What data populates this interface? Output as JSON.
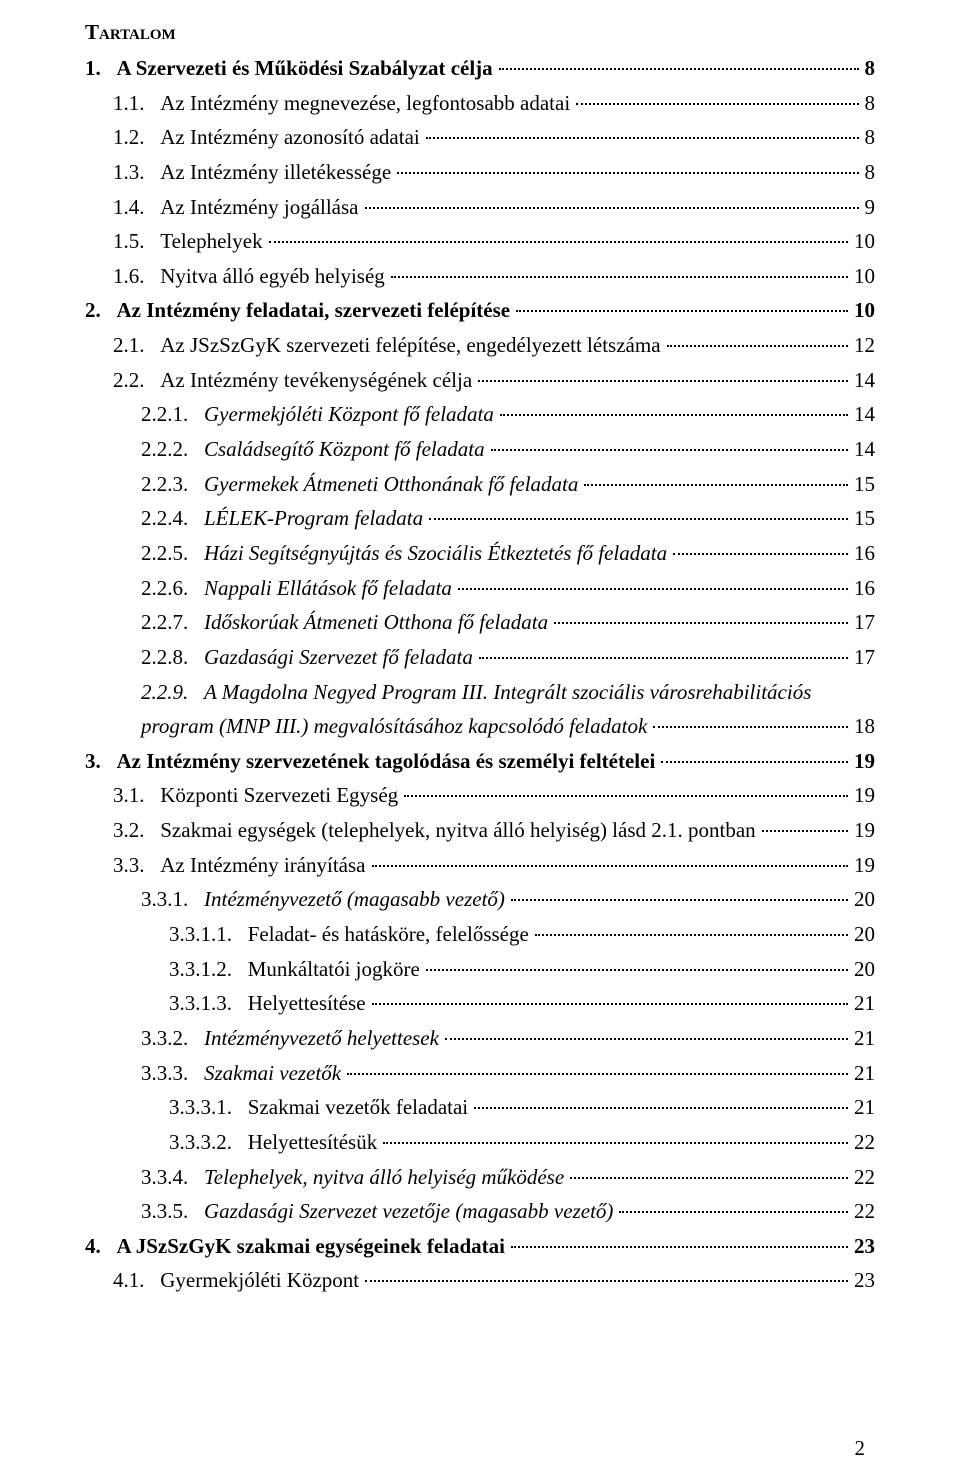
{
  "title": "Tartalom",
  "page_number": "2",
  "toc": [
    {
      "num": "1.",
      "text": "A Szervezeti és Működési Szabályzat célja",
      "page": "8",
      "indent": 0,
      "bold": true,
      "italic": false
    },
    {
      "num": "1.1.",
      "text": "Az Intézmény megnevezése, legfontosabb adatai",
      "page": "8",
      "indent": 1,
      "bold": false,
      "italic": false
    },
    {
      "num": "1.2.",
      "text": "Az Intézmény azonosító adatai",
      "page": "8",
      "indent": 1,
      "bold": false,
      "italic": false
    },
    {
      "num": "1.3.",
      "text": "Az Intézmény illetékessége",
      "page": "8",
      "indent": 1,
      "bold": false,
      "italic": false
    },
    {
      "num": "1.4.",
      "text": "Az Intézmény jogállása",
      "page": "9",
      "indent": 1,
      "bold": false,
      "italic": false
    },
    {
      "num": "1.5.",
      "text": "Telephelyek",
      "page": "10",
      "indent": 1,
      "bold": false,
      "italic": false
    },
    {
      "num": "1.6.",
      "text": "Nyitva álló egyéb helyiség",
      "page": "10",
      "indent": 1,
      "bold": false,
      "italic": false
    },
    {
      "num": "2.",
      "text": "Az Intézmény feladatai, szervezeti felépítése",
      "page": "10",
      "indent": 0,
      "bold": true,
      "italic": false
    },
    {
      "num": "2.1.",
      "text": "Az JSzSzGyK szervezeti felépítése, engedélyezett létszáma",
      "page": "12",
      "indent": 1,
      "bold": false,
      "italic": false
    },
    {
      "num": "2.2.",
      "text": "Az Intézmény tevékenységének célja",
      "page": "14",
      "indent": 1,
      "bold": false,
      "italic": false
    },
    {
      "num": "2.2.1.",
      "text": "Gyermekjóléti Központ fő feladata",
      "page": "14",
      "indent": 2,
      "bold": false,
      "italic": true
    },
    {
      "num": "2.2.2.",
      "text": "Családsegítő Központ fő feladata",
      "page": "14",
      "indent": 2,
      "bold": false,
      "italic": true
    },
    {
      "num": "2.2.3.",
      "text": "Gyermekek Átmeneti Otthonának fő feladata",
      "page": "15",
      "indent": 2,
      "bold": false,
      "italic": true
    },
    {
      "num": "2.2.4.",
      "text": "LÉLEK-Program feladata",
      "page": "15",
      "indent": 2,
      "bold": false,
      "italic": true
    },
    {
      "num": "2.2.5.",
      "text": "Házi Segítségnyújtás és Szociális Étkeztetés fő feladata",
      "page": "16",
      "indent": 2,
      "bold": false,
      "italic": true
    },
    {
      "num": "2.2.6.",
      "text": "Nappali Ellátások fő feladata",
      "page": "16",
      "indent": 2,
      "bold": false,
      "italic": true
    },
    {
      "num": "2.2.7.",
      "text": "Időskorúak Átmeneti Otthona fő feladata",
      "page": "17",
      "indent": 2,
      "bold": false,
      "italic": true
    },
    {
      "num": "2.2.8.",
      "text": "Gazdasági Szervezet fő feladata",
      "page": "17",
      "indent": 2,
      "bold": false,
      "italic": true
    },
    {
      "num": "2.2.9.",
      "text_line1": "A Magdolna Negyed Program III. Integrált szociális városrehabilitációs",
      "text_line2": "program (MNP III.) megvalósításához kapcsolódó feladatok",
      "page": "18",
      "indent": 2,
      "bold": false,
      "italic": true,
      "wrap": true
    },
    {
      "num": "3.",
      "text": "Az Intézmény szervezetének tagolódása és személyi feltételei",
      "page": "19",
      "indent": 0,
      "bold": true,
      "italic": false
    },
    {
      "num": "3.1.",
      "text": "Központi Szervezeti Egység",
      "page": "19",
      "indent": 1,
      "bold": false,
      "italic": false
    },
    {
      "num": "3.2.",
      "text": "Szakmai egységek (telephelyek, nyitva álló helyiség) lásd 2.1. pontban",
      "page": "19",
      "indent": 1,
      "bold": false,
      "italic": false
    },
    {
      "num": "3.3.",
      "text": "Az Intézmény irányítása",
      "page": "19",
      "indent": 1,
      "bold": false,
      "italic": false
    },
    {
      "num": "3.3.1.",
      "text": "Intézményvezető (magasabb vezető)",
      "page": "20",
      "indent": 2,
      "bold": false,
      "italic": true
    },
    {
      "num": "3.3.1.1.",
      "text": "Feladat- és hatásköre, felelőssége",
      "page": "20",
      "indent": 3,
      "bold": false,
      "italic": false
    },
    {
      "num": "3.3.1.2.",
      "text": "Munkáltatói jogköre",
      "page": "20",
      "indent": 3,
      "bold": false,
      "italic": false
    },
    {
      "num": "3.3.1.3.",
      "text": "Helyettesítése",
      "page": "21",
      "indent": 3,
      "bold": false,
      "italic": false
    },
    {
      "num": "3.3.2.",
      "text": "Intézményvezető helyettesek",
      "page": "21",
      "indent": 2,
      "bold": false,
      "italic": true
    },
    {
      "num": "3.3.3.",
      "text": "Szakmai vezetők",
      "page": "21",
      "indent": 2,
      "bold": false,
      "italic": true
    },
    {
      "num": "3.3.3.1.",
      "text": "Szakmai vezetők feladatai",
      "page": "21",
      "indent": 3,
      "bold": false,
      "italic": false
    },
    {
      "num": "3.3.3.2.",
      "text": "Helyettesítésük",
      "page": "22",
      "indent": 3,
      "bold": false,
      "italic": false
    },
    {
      "num": "3.3.4.",
      "text": "Telephelyek, nyitva álló helyiség működése",
      "page": "22",
      "indent": 2,
      "bold": false,
      "italic": true
    },
    {
      "num": "3.3.5.",
      "text": "Gazdasági Szervezet vezetője (magasabb vezető)",
      "page": "22",
      "indent": 2,
      "bold": false,
      "italic": true
    },
    {
      "num": "4.",
      "text": "A JSzSzGyK szakmai egységeinek feladatai",
      "page": "23",
      "indent": 0,
      "bold": true,
      "italic": false
    },
    {
      "num": "4.1.",
      "text": "Gyermekjóléti Központ",
      "page": "23",
      "indent": 1,
      "bold": false,
      "italic": false
    }
  ]
}
